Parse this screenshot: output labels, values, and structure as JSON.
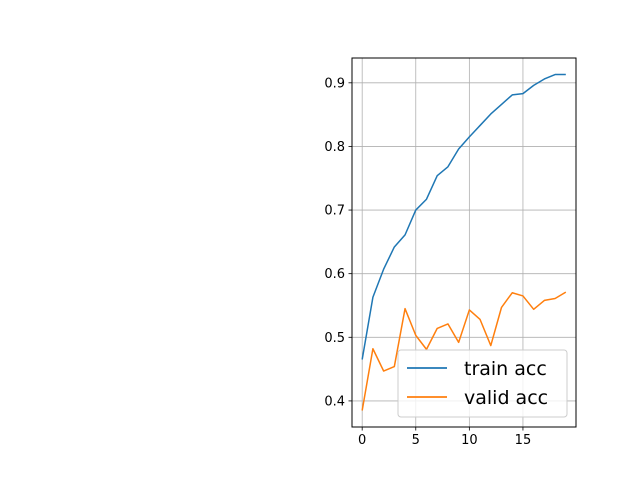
{
  "chart_data": {
    "type": "line",
    "x": [
      0,
      1,
      2,
      3,
      4,
      5,
      6,
      7,
      8,
      9,
      10,
      11,
      12,
      13,
      14,
      15,
      16,
      17,
      18,
      19
    ],
    "series": [
      {
        "name": "train acc",
        "color": "#1f77b4",
        "values": [
          0.465,
          0.563,
          0.607,
          0.642,
          0.661,
          0.7,
          0.717,
          0.754,
          0.768,
          0.796,
          0.815,
          0.833,
          0.851,
          0.866,
          0.881,
          0.883,
          0.896,
          0.906,
          0.913,
          0.913
        ]
      },
      {
        "name": "valid acc",
        "color": "#ff7f0e",
        "values": [
          0.385,
          0.482,
          0.447,
          0.454,
          0.545,
          0.503,
          0.481,
          0.514,
          0.521,
          0.492,
          0.543,
          0.528,
          0.487,
          0.547,
          0.57,
          0.565,
          0.544,
          0.558,
          0.561,
          0.571
        ]
      }
    ],
    "xlim": [
      -0.95,
      19.95
    ],
    "ylim": [
      0.359,
      0.939
    ],
    "xticks": [
      0,
      5,
      10,
      15
    ],
    "yticks": [
      0.4,
      0.5,
      0.6,
      0.7,
      0.8,
      0.9
    ],
    "grid": true,
    "legend": "lower-right",
    "title": "",
    "xlabel": "",
    "ylabel": ""
  }
}
